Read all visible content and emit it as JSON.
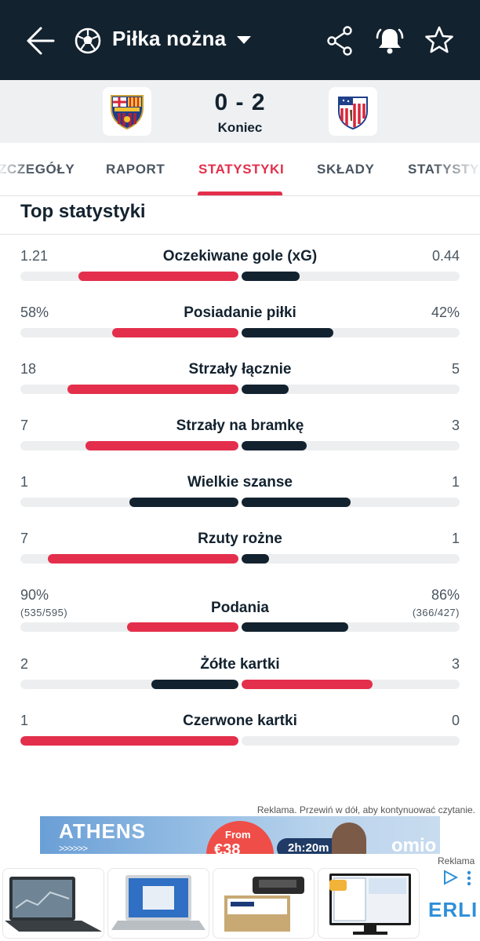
{
  "header": {
    "sport": "Piłka nożna"
  },
  "match": {
    "score": "0 - 2",
    "status": "Koniec"
  },
  "tabs": [
    {
      "label": "SZCZEGÓŁY",
      "active": false
    },
    {
      "label": "RAPORT",
      "active": false
    },
    {
      "label": "STATYSTYKI",
      "active": true
    },
    {
      "label": "SKŁADY",
      "active": false
    },
    {
      "label": "STATYSTYKI",
      "active": false
    }
  ],
  "section": {
    "title": "Top statystyki"
  },
  "stats": [
    {
      "name": "Oczekiwane gole (xG)",
      "home": "1.21",
      "away": "0.44",
      "home_share": 0.735,
      "away_share": 0.265,
      "home_color": "#e32f4b",
      "away_color": "#13222f"
    },
    {
      "name": "Posiadanie piłki",
      "home": "58%",
      "away": "42%",
      "home_share": 0.58,
      "away_share": 0.42,
      "home_color": "#e32f4b",
      "away_color": "#13222f"
    },
    {
      "name": "Strzały łącznie",
      "home": "18",
      "away": "5",
      "home_share": 0.783,
      "away_share": 0.217,
      "home_color": "#e32f4b",
      "away_color": "#13222f"
    },
    {
      "name": "Strzały na bramkę",
      "home": "7",
      "away": "3",
      "home_share": 0.7,
      "away_share": 0.3,
      "home_color": "#e32f4b",
      "away_color": "#13222f"
    },
    {
      "name": "Wielkie szanse",
      "home": "1",
      "away": "1",
      "home_share": 0.5,
      "away_share": 0.5,
      "home_color": "#13222f",
      "away_color": "#13222f"
    },
    {
      "name": "Rzuty rożne",
      "home": "7",
      "away": "1",
      "home_share": 0.875,
      "away_share": 0.125,
      "home_color": "#e32f4b",
      "away_color": "#13222f"
    },
    {
      "name": "Podania",
      "home": "90%",
      "away": "86%",
      "home_sub": "(535/595)",
      "away_sub": "(366/427)",
      "home_share": 0.51,
      "away_share": 0.49,
      "home_color": "#e32f4b",
      "away_color": "#13222f"
    },
    {
      "name": "Żółte kartki",
      "home": "2",
      "away": "3",
      "home_share": 0.4,
      "away_share": 0.6,
      "home_color": "#13222f",
      "away_color": "#e32f4b"
    },
    {
      "name": "Czerwone kartki",
      "home": "1",
      "away": "0",
      "home_share": 1.0,
      "away_share": 0.0,
      "home_color": "#e32f4b",
      "away_color": "#13222f"
    }
  ],
  "ads": {
    "note": "Reklama. Przewiń w dół, aby kontynuować czytanie.",
    "banner": {
      "city": "ATHENS",
      "arrows": ">>>>>>",
      "from": "From",
      "price": "€38",
      "duration": "2h:20m",
      "brand": "omio"
    },
    "label": "Reklama",
    "shop": "ERLI"
  },
  "icons": {
    "back": "arrow-left-icon",
    "sport": "soccer-ball-icon",
    "dropdown": "caret-down-icon",
    "share": "share-icon",
    "alerts": "bell-icon",
    "favorite": "star-icon"
  }
}
